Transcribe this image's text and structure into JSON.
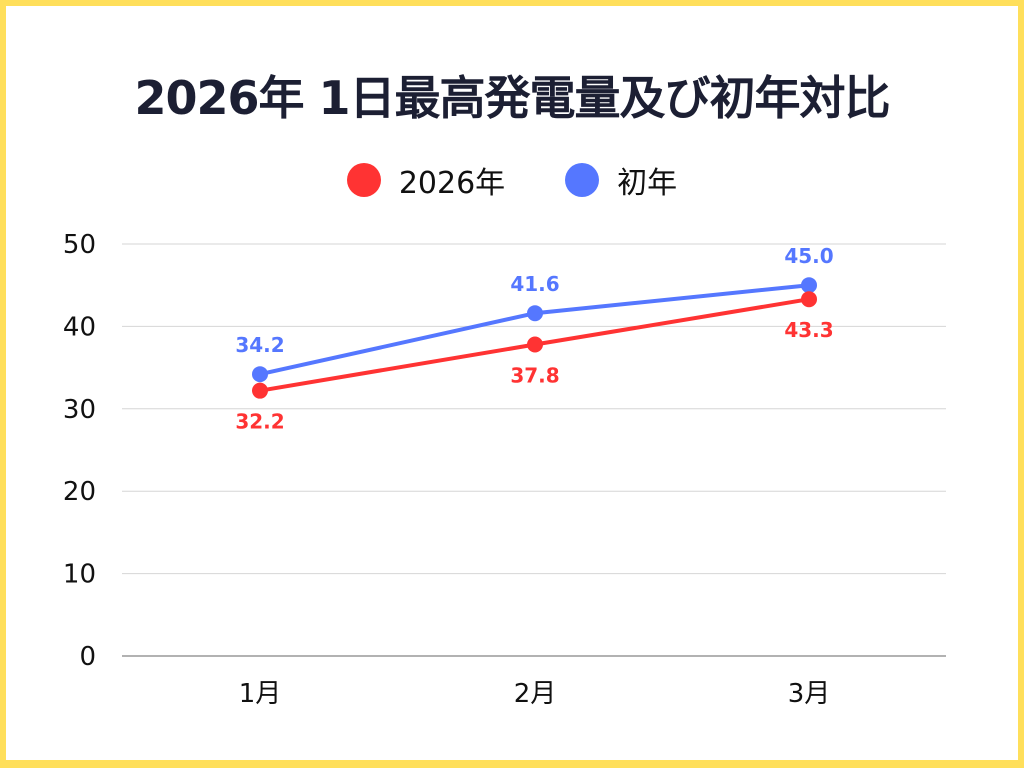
{
  "title": "2026年 1日最高発電量及び初年対比",
  "legend": [
    {
      "label": "2026年",
      "color": "#FF3333"
    },
    {
      "label": "初年",
      "color": "#5577FF"
    }
  ],
  "chart_data": {
    "type": "line",
    "title": "2026年 1日最高発電量及び初年対比",
    "categories": [
      "1月",
      "2月",
      "3月"
    ],
    "series": [
      {
        "name": "2026年",
        "color": "#FF3333",
        "values": [
          32.2,
          37.8,
          43.3
        ]
      },
      {
        "name": "初年",
        "color": "#5577FF",
        "values": [
          34.2,
          41.6,
          45.0
        ]
      }
    ],
    "xlabel": "",
    "ylabel": "",
    "ylim": [
      0,
      50
    ],
    "yticks": [
      0,
      10,
      20,
      30,
      40,
      50
    ],
    "grid": true,
    "legend_position": "top",
    "data_labels": true
  }
}
